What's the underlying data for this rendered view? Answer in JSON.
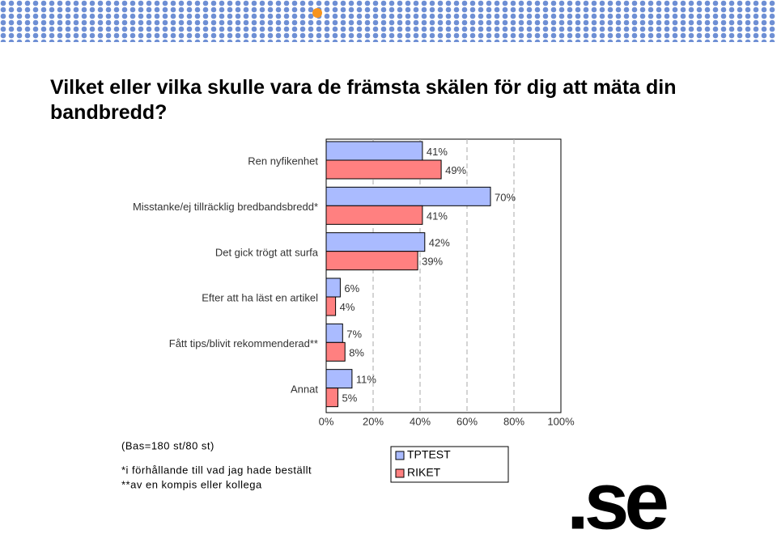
{
  "chart_data": {
    "type": "bar",
    "orientation": "horizontal",
    "title": "Vilket eller vilka skulle vara de främsta skälen för dig att mäta din bandbredd?",
    "categories": [
      "Ren nyfikenhet",
      "Misstanke/ej tillräcklig bredbandsbredd*",
      "Det gick trögt att surfa",
      "Efter att ha läst en artikel",
      "Fått tips/blivit rekommenderad**",
      "Annat"
    ],
    "series": [
      {
        "name": "TPTEST",
        "color": "#aabbff",
        "values": [
          41,
          70,
          42,
          6,
          7,
          11
        ],
        "value_labels": [
          "41%",
          "70%",
          "42%",
          "6%",
          "7%",
          "11%"
        ]
      },
      {
        "name": "RIKET",
        "color": "#ff8080",
        "values": [
          49,
          41,
          39,
          4,
          8,
          5
        ],
        "value_labels": [
          "49%",
          "41%",
          "39%",
          "4%",
          "8%",
          "5%"
        ]
      }
    ],
    "xlim": [
      0,
      100
    ],
    "xticks": [
      {
        "value": 0,
        "label": "0%"
      },
      {
        "value": 20,
        "label": "20%"
      },
      {
        "value": 40,
        "label": "40%"
      },
      {
        "value": 60,
        "label": "60%"
      },
      {
        "value": 80,
        "label": "80%"
      },
      {
        "value": 100,
        "label": "100%"
      }
    ],
    "grid": true,
    "base_note": "(Bas=180 st/80 st)",
    "footnotes": [
      "*i förhållande till vad jag hade beställt",
      "**av en kompis eller kollega"
    ],
    "logo": ".se"
  }
}
